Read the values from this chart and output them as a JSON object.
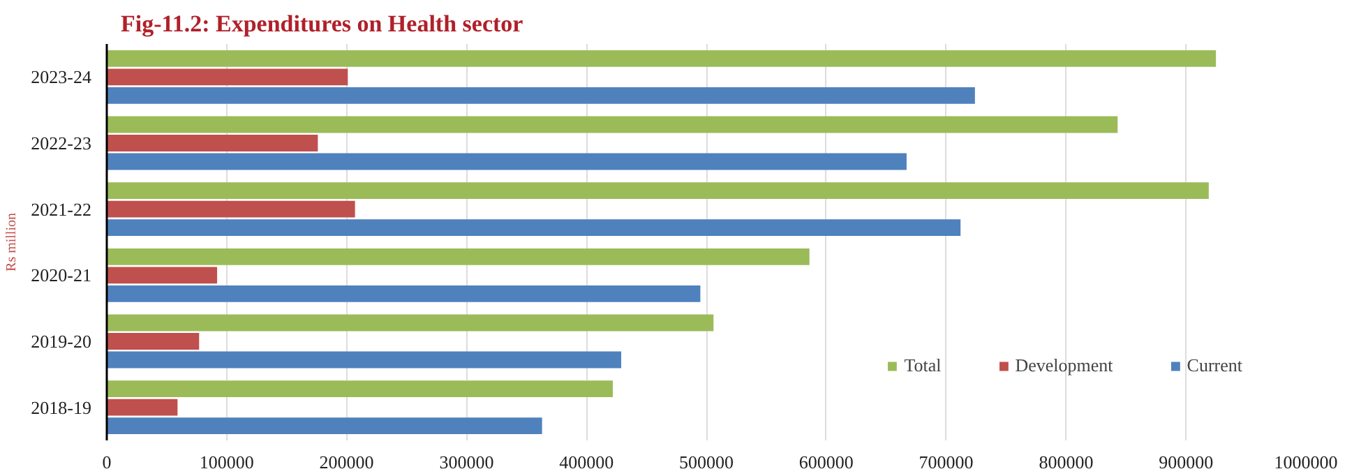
{
  "chart_data": {
    "type": "bar",
    "orientation": "horizontal",
    "title": "Fig-11.2: Expenditures on Health sector",
    "ylabel": "Rs million",
    "categories": [
      "2023-24",
      "2022-23",
      "2021-22",
      "2020-21",
      "2019-20",
      "2018-19"
    ],
    "series": [
      {
        "name": "Total",
        "color": "#9bbb59",
        "values": [
          925000,
          843000,
          919000,
          586000,
          506000,
          422000
        ]
      },
      {
        "name": "Development",
        "color": "#c0504d",
        "values": [
          201000,
          176000,
          207000,
          92000,
          77000,
          59000
        ]
      },
      {
        "name": "Current",
        "color": "#4f81bd",
        "values": [
          724000,
          667000,
          712000,
          495000,
          429000,
          363000
        ]
      }
    ],
    "xlim": [
      0,
      1000000
    ],
    "xticks": [
      0,
      100000,
      200000,
      300000,
      400000,
      500000,
      600000,
      700000,
      800000,
      900000,
      1000000
    ],
    "grid": "x",
    "legend": "bottom right"
  }
}
